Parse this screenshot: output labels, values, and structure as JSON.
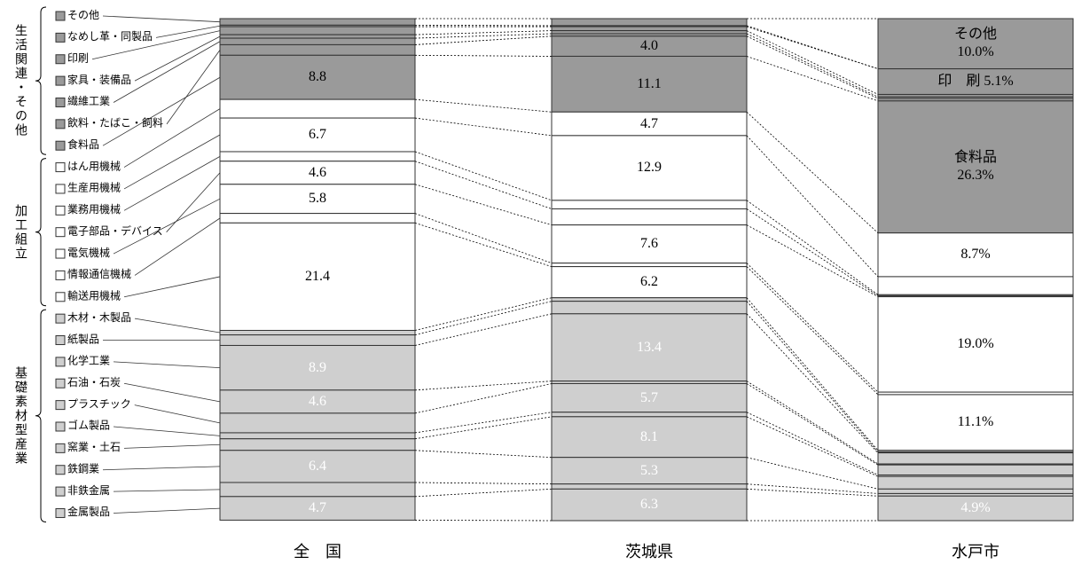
{
  "chart_data": {
    "type": "bar",
    "stacked": true,
    "ylim": [
      0,
      100
    ],
    "categories": [
      "全　国",
      "茨城県",
      "水戸市"
    ],
    "groups": [
      {
        "label": "生活関連・その他",
        "color": "#9a9a9a",
        "label_color": "#000000",
        "series": [
          {
            "name": "その他",
            "values": [
              1.3,
              1.4,
              10.0
            ],
            "value_labels": [
              null,
              null,
              "その他\n10.0%"
            ]
          },
          {
            "name": "なめし革・同製品",
            "values": [
              0.3,
              0.2,
              0.0
            ],
            "value_labels": [
              null,
              null,
              null
            ]
          },
          {
            "name": "印刷",
            "values": [
              1.6,
              0.8,
              5.1
            ],
            "value_labels": [
              null,
              null,
              "印　刷  5.1%"
            ]
          },
          {
            "name": "家具・装備品",
            "values": [
              0.7,
              0.6,
              0.5
            ],
            "value_labels": [
              null,
              null,
              null
            ]
          },
          {
            "name": "繊維工業",
            "values": [
              1.3,
              0.5,
              0.3
            ],
            "value_labels": [
              null,
              null,
              null
            ]
          },
          {
            "name": "飲料・たばこ・飼料",
            "values": [
              2.1,
              4.0,
              0.5
            ],
            "value_labels": [
              null,
              "4.0",
              null
            ]
          },
          {
            "name": "食料品",
            "values": [
              8.8,
              11.1,
              26.3
            ],
            "value_labels": [
              "8.8",
              "11.1",
              "食料品\n26.3%"
            ]
          }
        ]
      },
      {
        "label": "加工組立",
        "color": "#ffffff",
        "label_color": "#000000",
        "series": [
          {
            "name": "はん用機械",
            "values": [
              3.7,
              4.7,
              8.7
            ],
            "value_labels": [
              null,
              "4.7",
              "8.7%"
            ]
          },
          {
            "name": "生産用機械",
            "values": [
              6.7,
              12.9,
              3.6
            ],
            "value_labels": [
              "6.7",
              "12.9",
              null
            ]
          },
          {
            "name": "業務用機械",
            "values": [
              1.9,
              1.7,
              0.2
            ],
            "value_labels": [
              null,
              null,
              null
            ]
          },
          {
            "name": "電子部品・デバイス",
            "values": [
              4.6,
              3.2,
              0.2
            ],
            "value_labels": [
              "4.6",
              null,
              null
            ]
          },
          {
            "name": "電気機械",
            "values": [
              5.8,
              7.6,
              19.0
            ],
            "value_labels": [
              "5.8",
              "7.6",
              "19.0%"
            ]
          },
          {
            "name": "情報通信機械",
            "values": [
              1.9,
              0.7,
              0.5
            ],
            "value_labels": [
              null,
              null,
              null
            ]
          },
          {
            "name": "輸送用機械",
            "values": [
              21.4,
              6.2,
              11.1
            ],
            "value_labels": [
              "21.4",
              "6.2",
              "11.1%"
            ]
          }
        ]
      },
      {
        "label": "基礎素材型産業",
        "color": "#cfcfcf",
        "label_color": "#ffffff",
        "series": [
          {
            "name": "木材・木製品",
            "values": [
              0.9,
              0.7,
              0.3
            ],
            "value_labels": [
              null,
              null,
              null
            ]
          },
          {
            "name": "紙製品",
            "values": [
              2.1,
              2.5,
              0.2
            ],
            "value_labels": [
              null,
              null,
              null
            ]
          },
          {
            "name": "化学工業",
            "values": [
              8.9,
              13.4,
              2.2
            ],
            "value_labels": [
              "8.9",
              "13.4",
              null
            ]
          },
          {
            "name": "石油・石炭",
            "values": [
              4.6,
              0.5,
              0.2
            ],
            "value_labels": [
              "4.6",
              null,
              null
            ]
          },
          {
            "name": "プラスチック",
            "values": [
              3.9,
              5.7,
              2.0
            ],
            "value_labels": [
              null,
              "5.7",
              null
            ]
          },
          {
            "name": "ゴム製品",
            "values": [
              1.2,
              0.9,
              0.3
            ],
            "value_labels": [
              null,
              null,
              null
            ]
          },
          {
            "name": "窯業・土石",
            "values": [
              2.3,
              8.1,
              2.5
            ],
            "value_labels": [
              null,
              "8.1",
              null
            ]
          },
          {
            "name": "鉄鋼業",
            "values": [
              6.4,
              5.3,
              0.9
            ],
            "value_labels": [
              "6.4",
              "5.3",
              null
            ]
          },
          {
            "name": "非鉄金属",
            "values": [
              2.8,
              1.0,
              0.5
            ],
            "value_labels": [
              null,
              null,
              null
            ]
          },
          {
            "name": "金属製品",
            "values": [
              4.7,
              6.3,
              4.9
            ],
            "value_labels": [
              "4.7",
              "6.3",
              "4.9%"
            ]
          }
        ]
      }
    ]
  }
}
